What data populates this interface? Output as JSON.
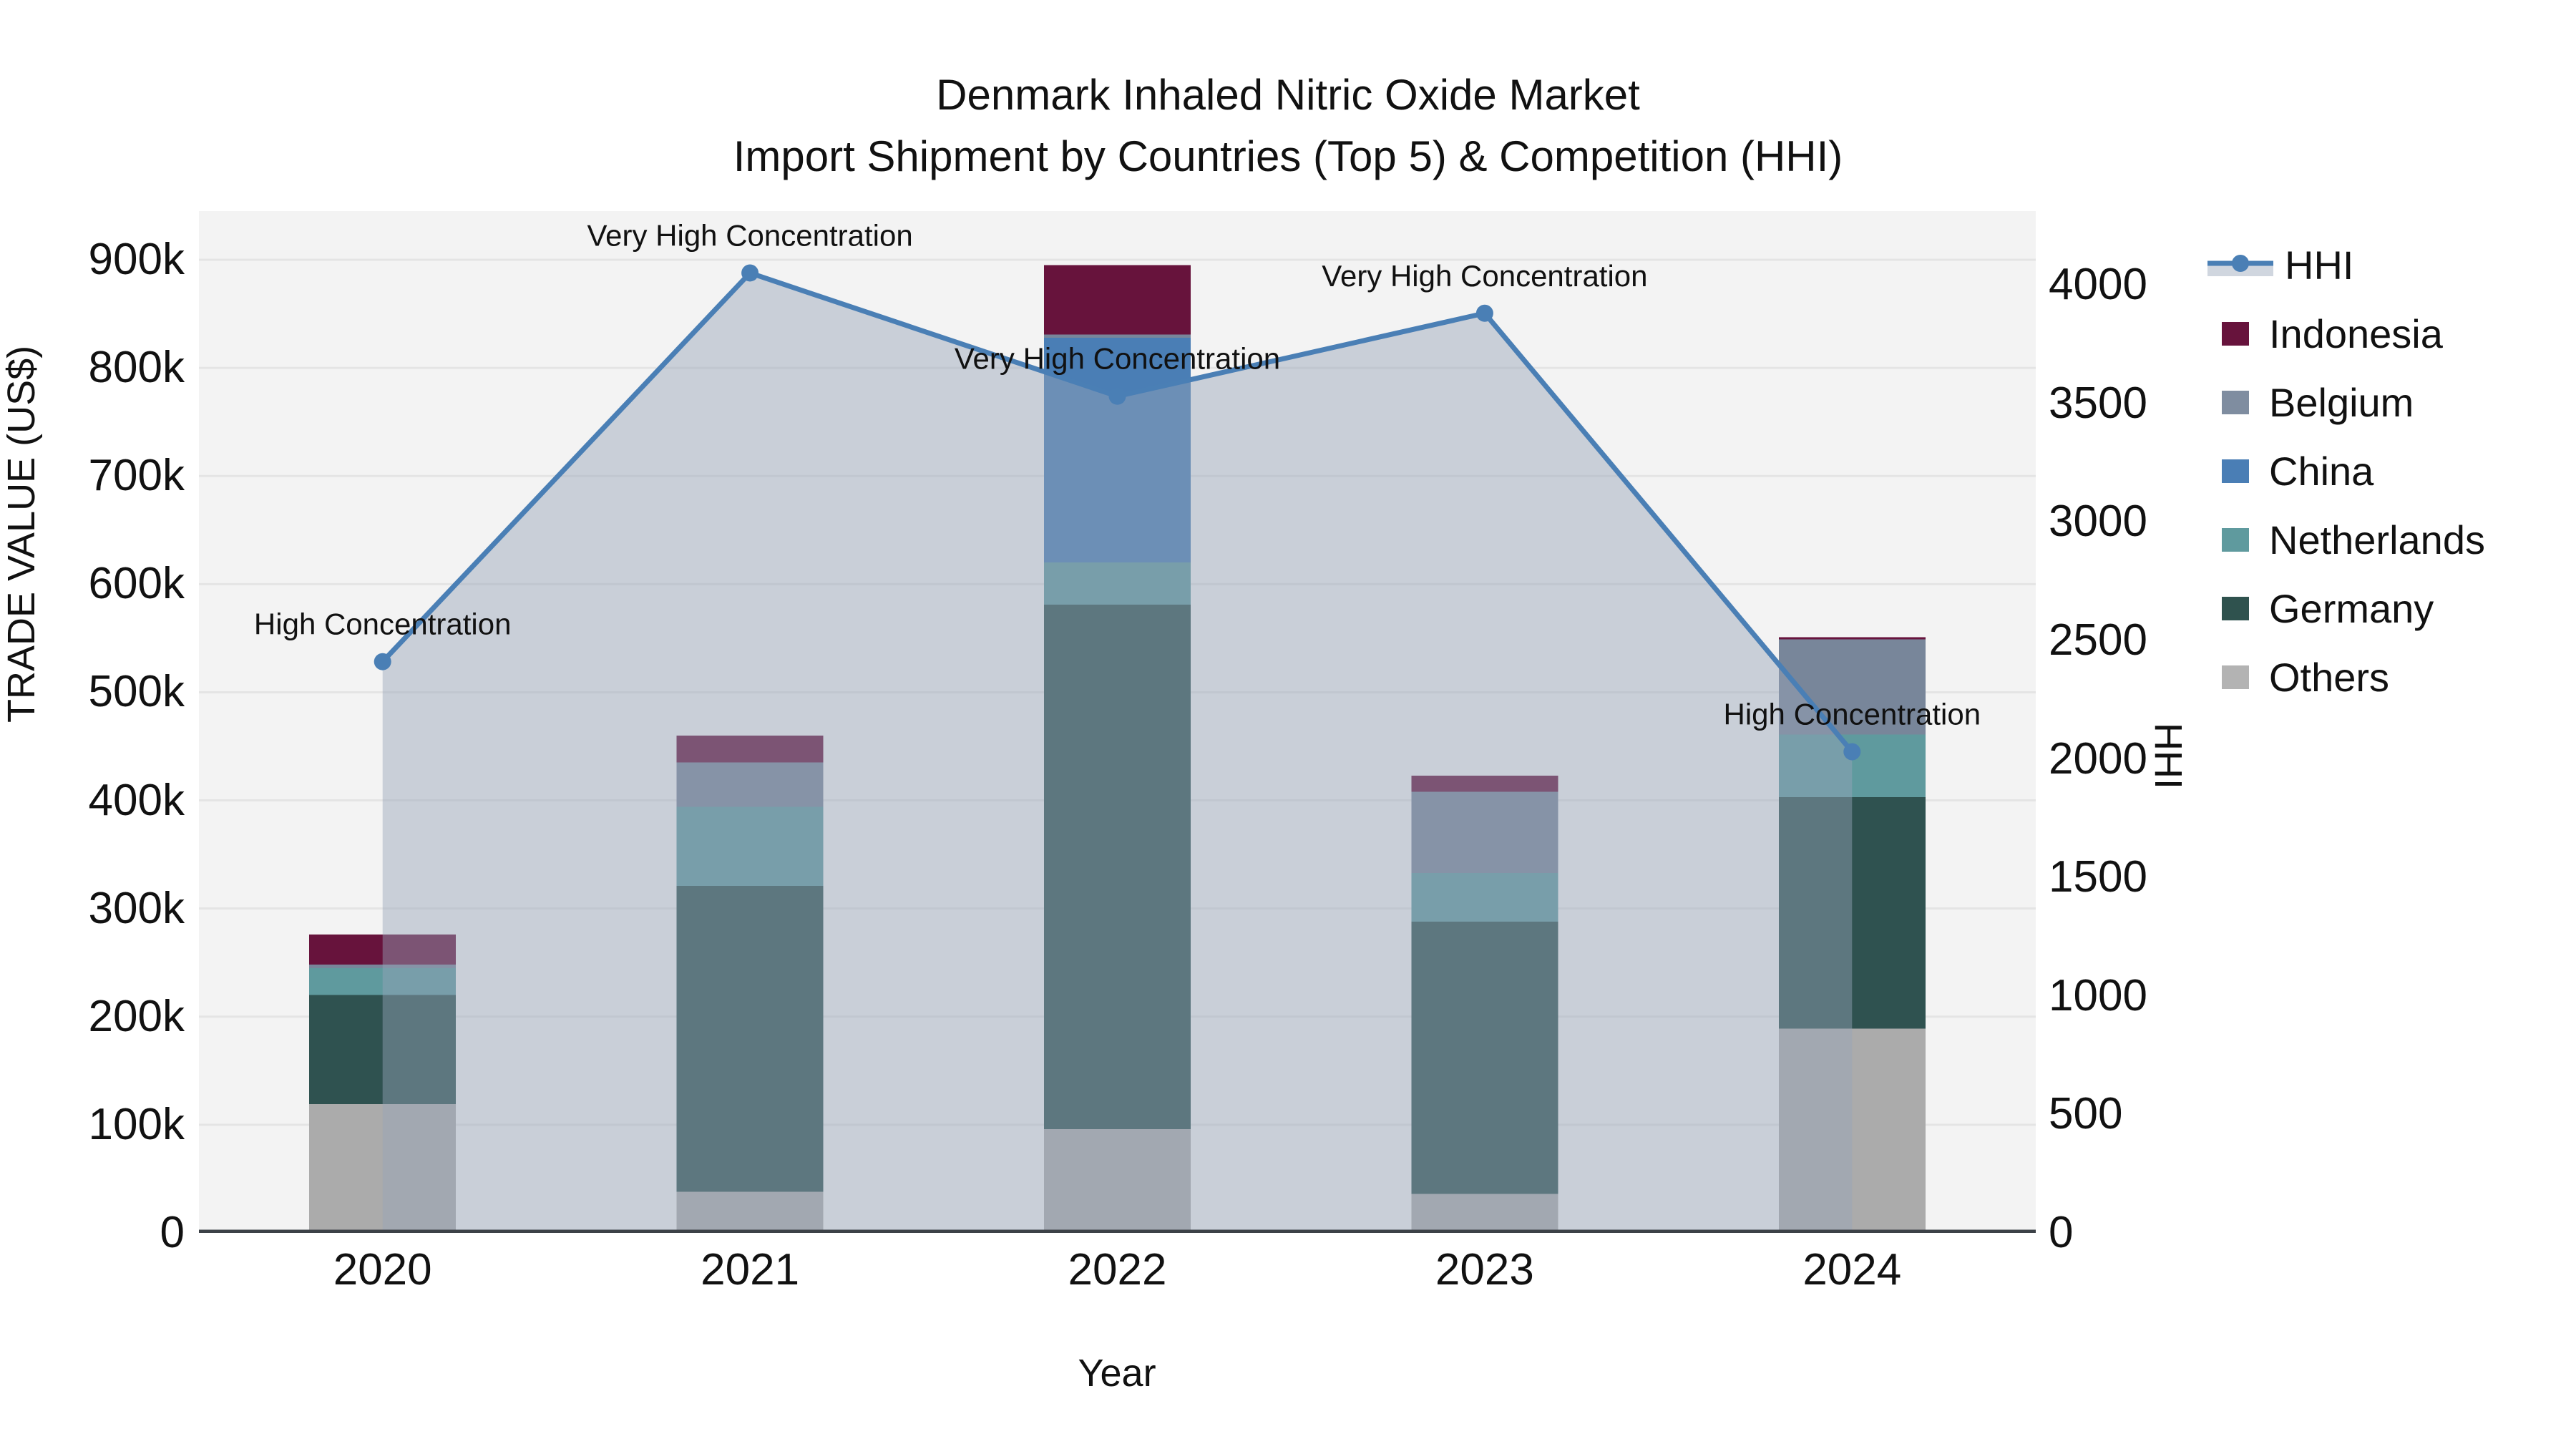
{
  "title": {
    "line1": "Denmark Inhaled Nitric Oxide Market",
    "line2": "Import Shipment by Countries (Top 5) & Competition (HHI)"
  },
  "chart_data": {
    "type": "combo-stacked-bar-line",
    "title": "Denmark Inhaled Nitric Oxide Market Import Shipment by Countries (Top 5) & Competition (HHI)",
    "xlabel": "Year",
    "ylabel_left": "TRADE VALUE (US$)",
    "ylabel_right": "HHI",
    "categories": [
      "2020",
      "2021",
      "2022",
      "2023",
      "2024"
    ],
    "bar_unit": "thousand US$",
    "series": [
      {
        "name": "Others",
        "color": "#ababab",
        "values": [
          119,
          38,
          96,
          36,
          189
        ]
      },
      {
        "name": "Germany",
        "color": "#2f5250",
        "values": [
          101,
          283,
          485,
          252,
          214
        ]
      },
      {
        "name": "Netherlands",
        "color": "#5f9a9e",
        "values": [
          25,
          73,
          39,
          45,
          58
        ]
      },
      {
        "name": "China",
        "color": "#4a7eb5",
        "values": [
          0,
          0,
          208,
          0,
          0
        ]
      },
      {
        "name": "Belgium",
        "color": "#78869a",
        "values": [
          3,
          41,
          3,
          75,
          88
        ]
      },
      {
        "name": "Indonesia",
        "color": "#67133c",
        "values": [
          28,
          25,
          64,
          15,
          2
        ]
      }
    ],
    "line_series": {
      "name": "HHI",
      "color": "#4a7fb5",
      "area_fill": "rgba(151,164,184,0.45)",
      "values": [
        2410,
        4050,
        3530,
        3880,
        2030
      ]
    },
    "annotations": [
      {
        "category": "2020",
        "text": "High Concentration"
      },
      {
        "category": "2021",
        "text": "Very High Concentration"
      },
      {
        "category": "2022",
        "text": "Very High Concentration"
      },
      {
        "category": "2023",
        "text": "Very High Concentration"
      },
      {
        "category": "2024",
        "text": "High Concentration"
      }
    ],
    "yaxis_left": {
      "ticks": [
        "0",
        "100k",
        "200k",
        "300k",
        "400k",
        "500k",
        "600k",
        "700k",
        "800k",
        "900k"
      ],
      "tick_values_k": [
        0,
        100,
        200,
        300,
        400,
        500,
        600,
        700,
        800,
        900
      ],
      "range_k": [
        0,
        945
      ]
    },
    "yaxis_right": {
      "ticks": [
        "0",
        "500",
        "1000",
        "1500",
        "2000",
        "2500",
        "3000",
        "3500",
        "4000"
      ],
      "tick_values": [
        0,
        500,
        1000,
        1500,
        2000,
        2500,
        3000,
        3500,
        4000
      ],
      "range": [
        0,
        4311
      ]
    },
    "grid": true,
    "legend_position": "right",
    "legend": [
      {
        "label": "HHI",
        "type": "line",
        "color": "#4a7fb5"
      },
      {
        "label": "Indonesia",
        "type": "swatch",
        "color": "#67133c"
      },
      {
        "label": "Belgium",
        "type": "swatch",
        "color": "#7f8da0"
      },
      {
        "label": "China",
        "type": "swatch",
        "color": "#4a7eb5"
      },
      {
        "label": "Netherlands",
        "type": "swatch",
        "color": "#5f9a9e"
      },
      {
        "label": "Germany",
        "type": "swatch",
        "color": "#2f524e"
      },
      {
        "label": "Others",
        "type": "swatch",
        "color": "#b3b3b3"
      }
    ],
    "colors": {
      "plot_background": "#f3f3f3",
      "grid_line": "#e4e4e4",
      "axis_line": "#3c4147",
      "text": "#111111"
    }
  }
}
